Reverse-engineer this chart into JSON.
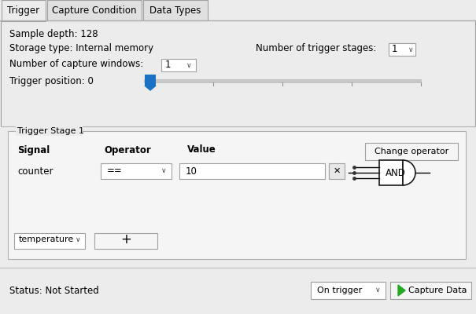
{
  "bg_color": "#ececec",
  "tab_bg": "#e0e0e0",
  "tab_active_bg": "#ececec",
  "tab_border": "#a0a0a0",
  "panel_bg": "#ececec",
  "inner_panel_bg": "#f5f5f5",
  "white": "#ffffff",
  "text_color": "#000000",
  "blue_slider": "#1a72c4",
  "slider_track": "#c8c8c8",
  "green_play": "#22aa22",
  "tabs": [
    "Trigger",
    "Capture Condition",
    "Data Types"
  ],
  "active_tab": 0,
  "sample_depth": "Sample depth: 128",
  "storage_type": "Storage type: Internal memory",
  "num_trigger_stages_label": "Number of trigger stages:",
  "num_trigger_stages_val": "1",
  "num_capture_windows_label": "Number of capture windows:",
  "num_capture_windows_val": "1",
  "trigger_position_label": "Trigger position: 0",
  "trigger_stage_label": "Trigger Stage 1",
  "signal_label": "Signal",
  "operator_label": "Operator",
  "value_label": "Value",
  "change_operator_btn": "Change operator",
  "signal_val": "counter",
  "operator_val": "==",
  "value_val": "10",
  "and_label": "AND",
  "add_signal_dropdown": "temperature",
  "status_label": "Status: Not Started",
  "capture_mode": "On trigger",
  "capture_btn": "Capture Data"
}
